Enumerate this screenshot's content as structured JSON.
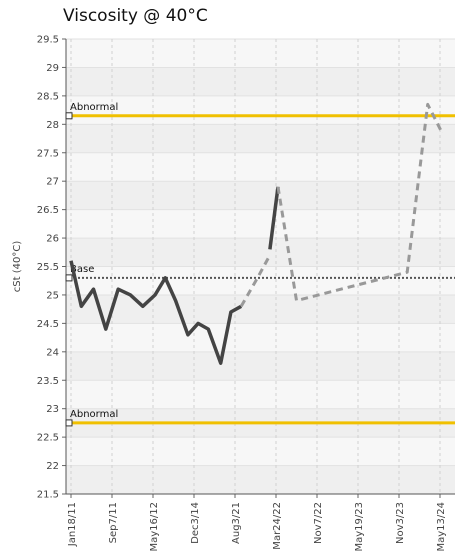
{
  "chart_data": {
    "type": "line",
    "title": "Viscosity @ 40°C",
    "ylabel": "cSt (40°C)",
    "xlabel": "",
    "ylim": [
      21.5,
      29.5
    ],
    "yticks": [
      21.5,
      22,
      22.5,
      23,
      23.5,
      24,
      24.5,
      25,
      25.5,
      26,
      26.5,
      27,
      27.5,
      28,
      28.5,
      29,
      29.5
    ],
    "ytick_labels": [
      "21.5",
      "22",
      "22.5",
      "23",
      "23.5",
      "24",
      "24.5",
      "25",
      "25.5",
      "26",
      "26.5",
      "27",
      "27.5",
      "28",
      "28.5",
      "29",
      "29.5"
    ],
    "x_tick_labels": [
      "Jan18/11",
      "Sep7/11",
      "May16/12",
      "Dec3/14",
      "Aug3/21",
      "Mar24/22",
      "Nov7/22",
      "May19/23",
      "Nov3/23",
      "May13/24"
    ],
    "grid": true,
    "reference_lines": [
      {
        "label": "Abnormal",
        "value": 28.15,
        "color": "#f0c000",
        "style": "solid"
      },
      {
        "label": "Base",
        "value": 25.3,
        "color": "#555555",
        "style": "dotted"
      },
      {
        "label": "Abnormal",
        "value": 22.75,
        "color": "#f0c000",
        "style": "solid"
      }
    ],
    "series": [
      {
        "style": "solid",
        "color": "#444444",
        "points": [
          [
            0,
            25.6
          ],
          [
            0.25,
            24.8
          ],
          [
            0.55,
            25.1
          ],
          [
            0.85,
            24.4
          ],
          [
            1.15,
            25.1
          ],
          [
            1.45,
            25.0
          ],
          [
            1.75,
            24.8
          ],
          [
            2.05,
            25.0
          ],
          [
            2.3,
            25.3
          ],
          [
            2.55,
            24.9
          ],
          [
            2.85,
            24.3
          ],
          [
            3.1,
            24.5
          ],
          [
            3.35,
            24.4
          ],
          [
            3.65,
            23.8
          ],
          [
            3.9,
            24.7
          ],
          [
            4.15,
            24.8
          ]
        ]
      },
      {
        "style": "dashed",
        "color": "#999999",
        "points": [
          [
            4.15,
            24.8
          ],
          [
            4.55,
            25.3
          ],
          [
            4.85,
            25.7
          ]
        ]
      },
      {
        "style": "solid",
        "color": "#444444",
        "points": [
          [
            4.85,
            25.8
          ],
          [
            5.05,
            26.9
          ]
        ]
      },
      {
        "style": "dashed",
        "color": "#999999",
        "points": [
          [
            5.05,
            26.9
          ],
          [
            5.5,
            24.9
          ],
          [
            8.2,
            25.4
          ],
          [
            8.7,
            28.35
          ],
          [
            9.05,
            27.85
          ]
        ]
      }
    ]
  }
}
